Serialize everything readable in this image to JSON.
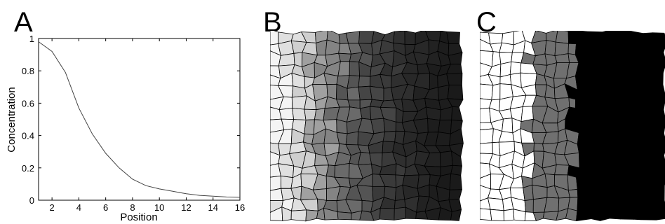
{
  "panels": [
    {
      "letter": "A"
    },
    {
      "letter": "B"
    },
    {
      "letter": "C"
    }
  ],
  "chart_data": {
    "type": "line",
    "title": "",
    "xlabel": "Position",
    "ylabel": "Concentration",
    "xlim": [
      1,
      16
    ],
    "ylim": [
      0,
      1
    ],
    "xticks": [
      2,
      4,
      6,
      8,
      10,
      12,
      14,
      16
    ],
    "yticks": [
      0,
      0.2,
      0.4,
      0.6,
      0.8,
      1
    ],
    "ytick_labels": [
      "0",
      "0.2",
      "0.4",
      "0.6",
      "0.8",
      "1"
    ],
    "grid": false,
    "series": [
      {
        "x": [
          1,
          2,
          3,
          4,
          5,
          6,
          7,
          8,
          9,
          10,
          11,
          12,
          13,
          14,
          15,
          16
        ],
        "values": [
          0.98,
          0.92,
          0.79,
          0.57,
          0.41,
          0.29,
          0.2,
          0.13,
          0.09,
          0.07,
          0.055,
          0.04,
          0.03,
          0.025,
          0.02,
          0.018
        ]
      }
    ]
  },
  "tissue_b": {
    "type": "gradient",
    "palette": [
      "#f4f4f4",
      "#e0e0e0",
      "#cfcfcf",
      "#a0a0a0",
      "#848484",
      "#6a6a6a",
      "#545454",
      "#454545",
      "#3a3a3a",
      "#2f2f2f",
      "#282828",
      "#222222",
      "#1d1d1d",
      "#1a1a1a"
    ]
  },
  "tissue_c": {
    "type": "thresholded",
    "palette": [
      "#ffffff",
      "#707070",
      "#000000"
    ]
  }
}
